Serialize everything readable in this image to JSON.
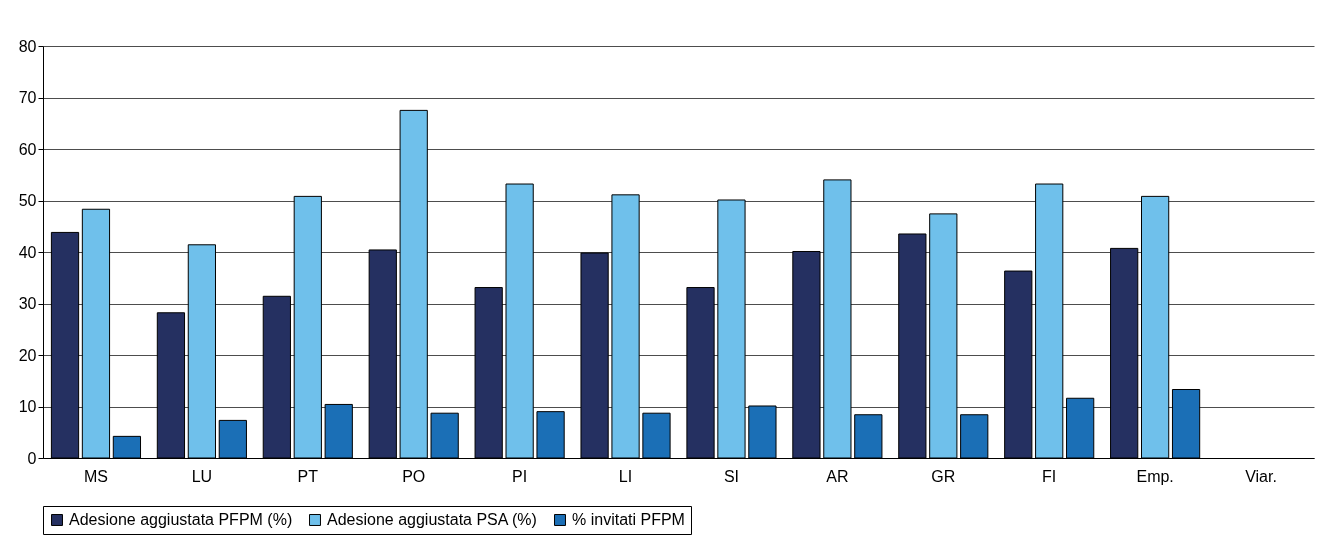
{
  "chart_data": {
    "type": "bar",
    "categories": [
      "MS",
      "LU",
      "PT",
      "PO",
      "PI",
      "LI",
      "SI",
      "AR",
      "GR",
      "FI",
      "Emp.",
      "Viar."
    ],
    "series": [
      {
        "name": "Adesione aggiustata PFPM (%)",
        "color": "#253061",
        "values": [
          43.8,
          28.2,
          31.4,
          40.4,
          33.1,
          39.8,
          33.1,
          40.1,
          43.5,
          36.3,
          40.7,
          null
        ]
      },
      {
        "name": "Adesione aggiustata PSA (%)",
        "color": "#6fc0eb",
        "values": [
          48.3,
          41.4,
          50.8,
          67.5,
          53.2,
          51.1,
          50.1,
          54.0,
          47.4,
          53.2,
          50.8,
          null
        ]
      },
      {
        "name": "% invitati PFPM",
        "color": "#1b6fb6",
        "values": [
          4.2,
          7.3,
          10.4,
          8.7,
          9.0,
          8.7,
          10.1,
          8.4,
          8.4,
          11.6,
          13.3,
          null
        ]
      }
    ],
    "ylim": [
      0,
      80
    ],
    "yticks": [
      0,
      10,
      20,
      30,
      40,
      50,
      60,
      70,
      80
    ],
    "grid": "y",
    "legend": "bottom"
  }
}
